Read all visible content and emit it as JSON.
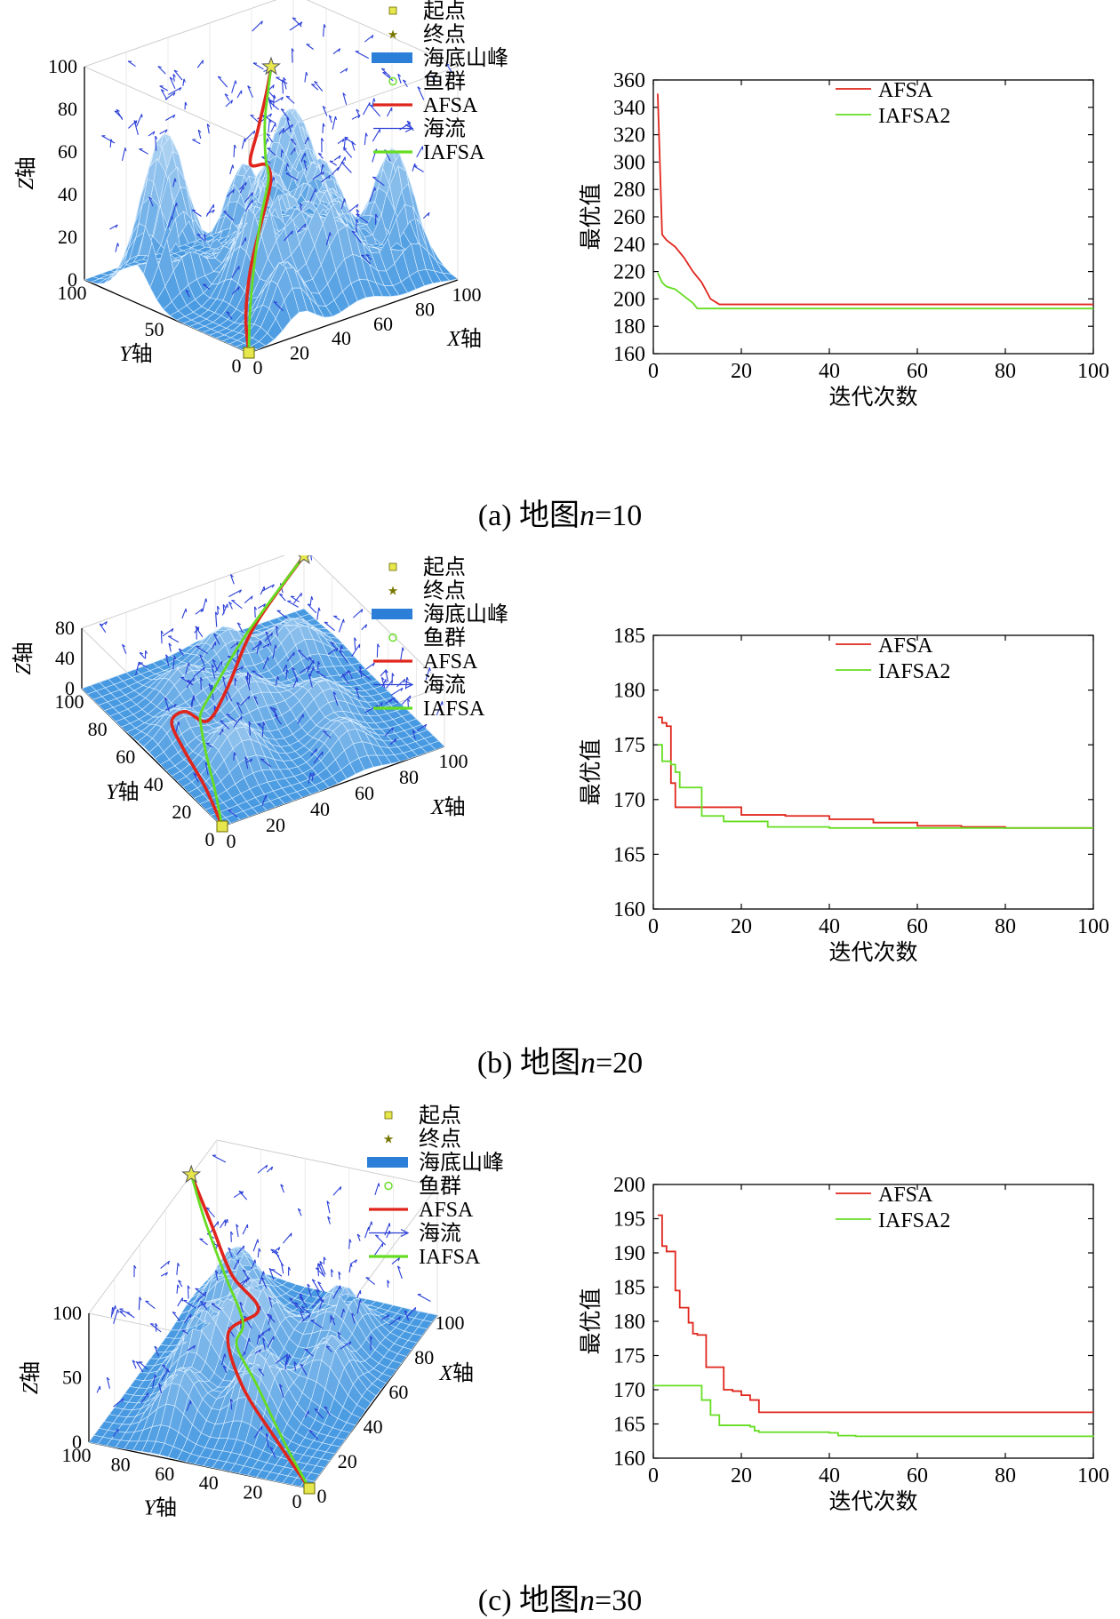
{
  "legend3d": {
    "start": "起点",
    "goal": "终点",
    "seamount": "海底山峰",
    "fish": "鱼群",
    "afsa": "AFSA",
    "current": "海流",
    "iafsa": "IAFSA"
  },
  "colors": {
    "afsa": "#e0261c",
    "iafsa": "#66dd22",
    "terrain": "#4a9ee0",
    "current": "#2a3fd8",
    "start_marker": "#e6e64d",
    "goal_marker": "#e6e64d"
  },
  "panels": [
    {
      "caption_prefix": "(a) 地图",
      "caption_var": "n",
      "caption_eq": "=10",
      "axes3d": {
        "xlabel_var": "X",
        "xlabel_unit": "轴",
        "ylabel_var": "Y",
        "ylabel_unit": "轴",
        "zlabel_var": "Z",
        "zlabel_unit": "轴",
        "xticks": [
          "0",
          "20",
          "40",
          "60",
          "80",
          "100"
        ],
        "yticks": [
          "0",
          "50",
          "100"
        ],
        "zticks": [
          "0",
          "20",
          "40",
          "60",
          "80",
          "100"
        ]
      }
    },
    {
      "caption_prefix": "(b) 地图",
      "caption_var": "n",
      "caption_eq": "=20",
      "axes3d": {
        "xlabel_var": "X",
        "xlabel_unit": "轴",
        "ylabel_var": "Y",
        "ylabel_unit": "轴",
        "zlabel_var": "Z",
        "zlabel_unit": "轴",
        "xticks": [
          "0",
          "20",
          "40",
          "60",
          "80",
          "100"
        ],
        "yticks": [
          "0",
          "20",
          "40",
          "60",
          "80",
          "100"
        ],
        "zticks": [
          "0",
          "40",
          "80"
        ]
      }
    },
    {
      "caption_prefix": "(c) 地图",
      "caption_var": "n",
      "caption_eq": "=30",
      "axes3d": {
        "xlabel_var": "X",
        "xlabel_unit": "轴",
        "ylabel_var": "Y",
        "ylabel_unit": "轴",
        "zlabel_var": "Z",
        "zlabel_unit": "轴",
        "xticks": [
          "0",
          "20",
          "40",
          "60",
          "80",
          "100"
        ],
        "yticks": [
          "0",
          "20",
          "40",
          "60",
          "80",
          "100"
        ],
        "zticks": [
          "0",
          "50",
          "100"
        ]
      }
    }
  ],
  "chart_data": [
    {
      "type": "line",
      "xlabel": "迭代次数",
      "ylabel": "最优值",
      "xlim": [
        0,
        100
      ],
      "ylim": [
        160,
        360
      ],
      "xticks": [
        0,
        20,
        40,
        60,
        80,
        100
      ],
      "yticks": [
        160,
        180,
        200,
        220,
        240,
        260,
        280,
        300,
        320,
        340,
        360
      ],
      "legend_position": "top-right",
      "series": [
        {
          "name": "AFSA",
          "color": "#e0261c",
          "x": [
            1,
            2,
            3,
            5,
            7,
            9,
            11,
            13,
            15,
            20,
            40,
            60,
            80,
            100
          ],
          "y": [
            350,
            247,
            243,
            238,
            230,
            220,
            212,
            200,
            196,
            196,
            196,
            196,
            196,
            196
          ]
        },
        {
          "name": "IAFSA2",
          "color": "#66dd22",
          "x": [
            1,
            2,
            3,
            5,
            7,
            9,
            10,
            20,
            40,
            60,
            80,
            100
          ],
          "y": [
            219,
            212,
            209,
            207,
            202,
            197,
            193,
            193,
            193,
            193,
            193,
            193
          ]
        }
      ]
    },
    {
      "type": "line",
      "xlabel": "迭代次数",
      "ylabel": "最优值",
      "xlim": [
        0,
        100
      ],
      "ylim": [
        160,
        185
      ],
      "xticks": [
        0,
        20,
        40,
        60,
        80,
        100
      ],
      "yticks": [
        160,
        165,
        170,
        175,
        180,
        185
      ],
      "legend_position": "top-right",
      "series": [
        {
          "name": "AFSA",
          "color": "#e0261c",
          "x": [
            1,
            2,
            3,
            4,
            5,
            19,
            20,
            30,
            40,
            50,
            60,
            70,
            80,
            100
          ],
          "y": [
            177.5,
            177,
            176.7,
            171.5,
            169.3,
            169.3,
            168.6,
            168.5,
            168.2,
            167.9,
            167.6,
            167.5,
            167.4,
            167.4
          ],
          "step": true
        },
        {
          "name": "IAFSA2",
          "color": "#66dd22",
          "x": [
            1,
            2,
            4,
            5,
            6,
            10,
            11,
            16,
            26,
            40,
            100
          ],
          "y": [
            175,
            173.5,
            173.2,
            172.5,
            171.1,
            171.1,
            168.5,
            168.0,
            167.5,
            167.4,
            167.4
          ],
          "step": true
        }
      ]
    },
    {
      "type": "line",
      "xlabel": "迭代次数",
      "ylabel": "最优值",
      "xlim": [
        0,
        100
      ],
      "ylim": [
        160,
        200
      ],
      "xticks": [
        0,
        20,
        40,
        60,
        80,
        100
      ],
      "yticks": [
        160,
        165,
        170,
        175,
        180,
        185,
        190,
        195,
        200
      ],
      "legend_position": "top-right",
      "series": [
        {
          "name": "AFSA",
          "color": "#e0261c",
          "x": [
            1,
            2,
            3,
            5,
            6,
            8,
            9,
            10,
            12,
            14,
            16,
            18,
            20,
            22,
            24,
            40,
            60,
            80,
            100
          ],
          "y": [
            195.5,
            191,
            190.2,
            184.5,
            182,
            179.8,
            178.2,
            178,
            173.3,
            173.3,
            170,
            169.8,
            169.2,
            168.5,
            166.7,
            166.7,
            166.7,
            166.7,
            166.7
          ],
          "step": true
        },
        {
          "name": "IAFSA2",
          "color": "#66dd22",
          "x": [
            0,
            10,
            11,
            13,
            15,
            22,
            23,
            24,
            40,
            42,
            46,
            60,
            100
          ],
          "y": [
            170.6,
            170.6,
            168.5,
            166.3,
            164.8,
            164.6,
            164.0,
            163.8,
            163.7,
            163.3,
            163.2,
            163.2,
            163.1
          ],
          "step": true
        }
      ]
    }
  ]
}
